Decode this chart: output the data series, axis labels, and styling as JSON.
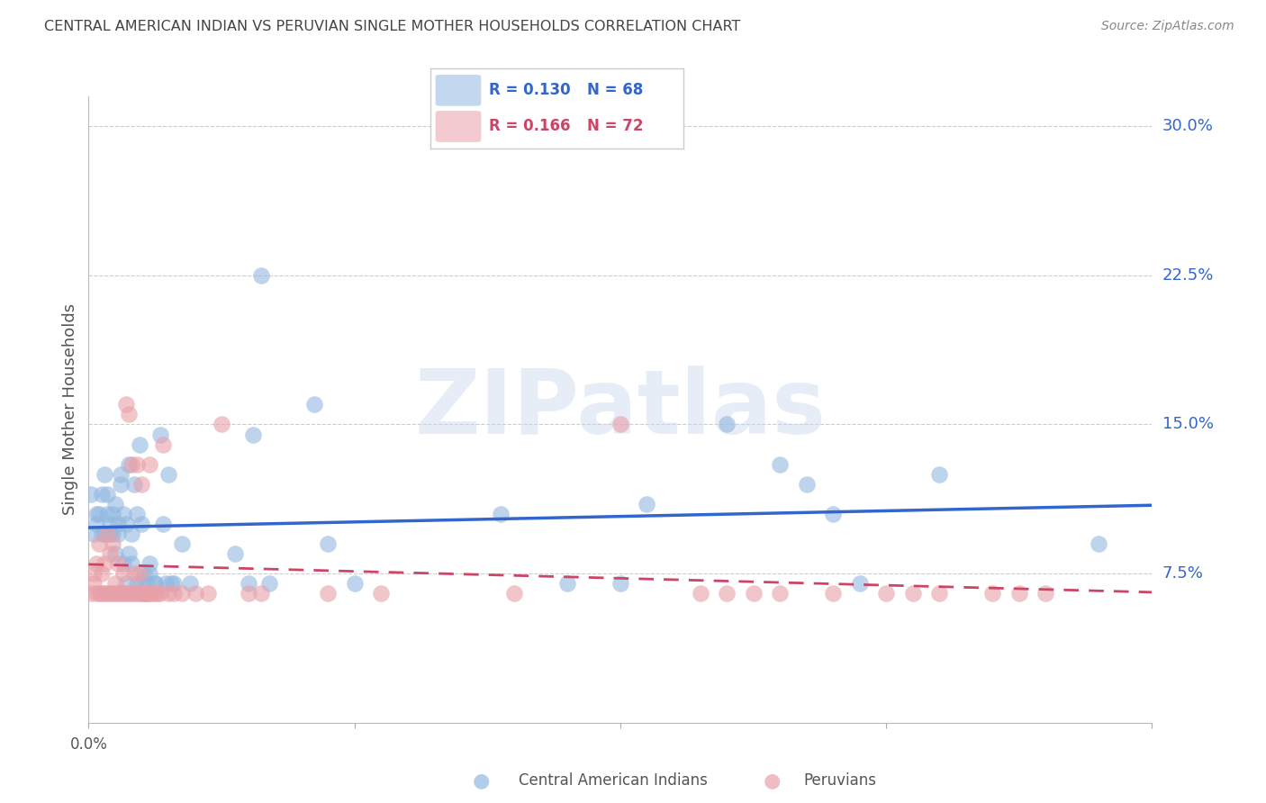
{
  "title": "CENTRAL AMERICAN INDIAN VS PERUVIAN SINGLE MOTHER HOUSEHOLDS CORRELATION CHART",
  "source": "Source: ZipAtlas.com",
  "ylabel": "Single Mother Households",
  "ytick_labels": [
    "7.5%",
    "15.0%",
    "22.5%",
    "30.0%"
  ],
  "ytick_values": [
    0.075,
    0.15,
    0.225,
    0.3
  ],
  "xlim": [
    0.0,
    0.4
  ],
  "ylim": [
    0.0,
    0.315
  ],
  "legend_r1": "R = 0.130",
  "legend_n1": "N = 68",
  "legend_r2": "R = 0.166",
  "legend_n2": "N = 72",
  "blue_color": "#92b8e0",
  "pink_color": "#e8a0a8",
  "line_blue": "#3366cc",
  "line_pink": "#cc4466",
  "title_color": "#444444",
  "source_color": "#888888",
  "ytick_color": "#3366cc",
  "watermark": "ZIPatlas",
  "blue_scatter": [
    [
      0.001,
      0.115
    ],
    [
      0.002,
      0.095
    ],
    [
      0.003,
      0.105
    ],
    [
      0.003,
      0.1
    ],
    [
      0.004,
      0.105
    ],
    [
      0.005,
      0.095
    ],
    [
      0.005,
      0.115
    ],
    [
      0.006,
      0.095
    ],
    [
      0.006,
      0.125
    ],
    [
      0.007,
      0.105
    ],
    [
      0.007,
      0.115
    ],
    [
      0.008,
      0.095
    ],
    [
      0.008,
      0.1
    ],
    [
      0.009,
      0.105
    ],
    [
      0.009,
      0.095
    ],
    [
      0.01,
      0.085
    ],
    [
      0.01,
      0.11
    ],
    [
      0.011,
      0.1
    ],
    [
      0.011,
      0.095
    ],
    [
      0.012,
      0.125
    ],
    [
      0.012,
      0.12
    ],
    [
      0.013,
      0.105
    ],
    [
      0.013,
      0.08
    ],
    [
      0.014,
      0.1
    ],
    [
      0.014,
      0.07
    ],
    [
      0.015,
      0.13
    ],
    [
      0.015,
      0.085
    ],
    [
      0.016,
      0.095
    ],
    [
      0.016,
      0.08
    ],
    [
      0.017,
      0.12
    ],
    [
      0.018,
      0.105
    ],
    [
      0.018,
      0.07
    ],
    [
      0.019,
      0.14
    ],
    [
      0.02,
      0.1
    ],
    [
      0.02,
      0.07
    ],
    [
      0.021,
      0.075
    ],
    [
      0.022,
      0.07
    ],
    [
      0.023,
      0.075
    ],
    [
      0.023,
      0.08
    ],
    [
      0.025,
      0.07
    ],
    [
      0.025,
      0.07
    ],
    [
      0.027,
      0.145
    ],
    [
      0.028,
      0.1
    ],
    [
      0.029,
      0.07
    ],
    [
      0.03,
      0.125
    ],
    [
      0.031,
      0.07
    ],
    [
      0.032,
      0.07
    ],
    [
      0.035,
      0.09
    ],
    [
      0.038,
      0.07
    ],
    [
      0.055,
      0.085
    ],
    [
      0.06,
      0.07
    ],
    [
      0.062,
      0.145
    ],
    [
      0.065,
      0.225
    ],
    [
      0.068,
      0.07
    ],
    [
      0.085,
      0.16
    ],
    [
      0.09,
      0.09
    ],
    [
      0.1,
      0.07
    ],
    [
      0.155,
      0.105
    ],
    [
      0.18,
      0.07
    ],
    [
      0.2,
      0.07
    ],
    [
      0.21,
      0.11
    ],
    [
      0.24,
      0.15
    ],
    [
      0.26,
      0.13
    ],
    [
      0.27,
      0.12
    ],
    [
      0.28,
      0.105
    ],
    [
      0.29,
      0.07
    ],
    [
      0.32,
      0.125
    ],
    [
      0.38,
      0.09
    ]
  ],
  "pink_scatter": [
    [
      0.001,
      0.065
    ],
    [
      0.002,
      0.07
    ],
    [
      0.002,
      0.075
    ],
    [
      0.003,
      0.065
    ],
    [
      0.003,
      0.08
    ],
    [
      0.004,
      0.065
    ],
    [
      0.004,
      0.09
    ],
    [
      0.005,
      0.065
    ],
    [
      0.005,
      0.075
    ],
    [
      0.006,
      0.065
    ],
    [
      0.006,
      0.08
    ],
    [
      0.007,
      0.065
    ],
    [
      0.007,
      0.095
    ],
    [
      0.008,
      0.065
    ],
    [
      0.008,
      0.085
    ],
    [
      0.009,
      0.065
    ],
    [
      0.009,
      0.09
    ],
    [
      0.01,
      0.065
    ],
    [
      0.01,
      0.07
    ],
    [
      0.011,
      0.065
    ],
    [
      0.011,
      0.08
    ],
    [
      0.012,
      0.065
    ],
    [
      0.013,
      0.065
    ],
    [
      0.013,
      0.075
    ],
    [
      0.014,
      0.065
    ],
    [
      0.014,
      0.16
    ],
    [
      0.015,
      0.065
    ],
    [
      0.015,
      0.155
    ],
    [
      0.016,
      0.065
    ],
    [
      0.016,
      0.13
    ],
    [
      0.017,
      0.065
    ],
    [
      0.017,
      0.075
    ],
    [
      0.018,
      0.065
    ],
    [
      0.018,
      0.13
    ],
    [
      0.019,
      0.065
    ],
    [
      0.019,
      0.075
    ],
    [
      0.02,
      0.065
    ],
    [
      0.02,
      0.12
    ],
    [
      0.021,
      0.065
    ],
    [
      0.021,
      0.065
    ],
    [
      0.022,
      0.065
    ],
    [
      0.022,
      0.065
    ],
    [
      0.023,
      0.065
    ],
    [
      0.023,
      0.13
    ],
    [
      0.024,
      0.065
    ],
    [
      0.025,
      0.065
    ],
    [
      0.026,
      0.065
    ],
    [
      0.027,
      0.065
    ],
    [
      0.028,
      0.14
    ],
    [
      0.03,
      0.065
    ],
    [
      0.032,
      0.065
    ],
    [
      0.035,
      0.065
    ],
    [
      0.04,
      0.065
    ],
    [
      0.045,
      0.065
    ],
    [
      0.05,
      0.15
    ],
    [
      0.06,
      0.065
    ],
    [
      0.065,
      0.065
    ],
    [
      0.09,
      0.065
    ],
    [
      0.11,
      0.065
    ],
    [
      0.16,
      0.065
    ],
    [
      0.2,
      0.15
    ],
    [
      0.23,
      0.065
    ],
    [
      0.24,
      0.065
    ],
    [
      0.25,
      0.065
    ],
    [
      0.26,
      0.065
    ],
    [
      0.28,
      0.065
    ],
    [
      0.3,
      0.065
    ],
    [
      0.31,
      0.065
    ],
    [
      0.32,
      0.065
    ],
    [
      0.34,
      0.065
    ],
    [
      0.35,
      0.065
    ],
    [
      0.36,
      0.065
    ]
  ]
}
